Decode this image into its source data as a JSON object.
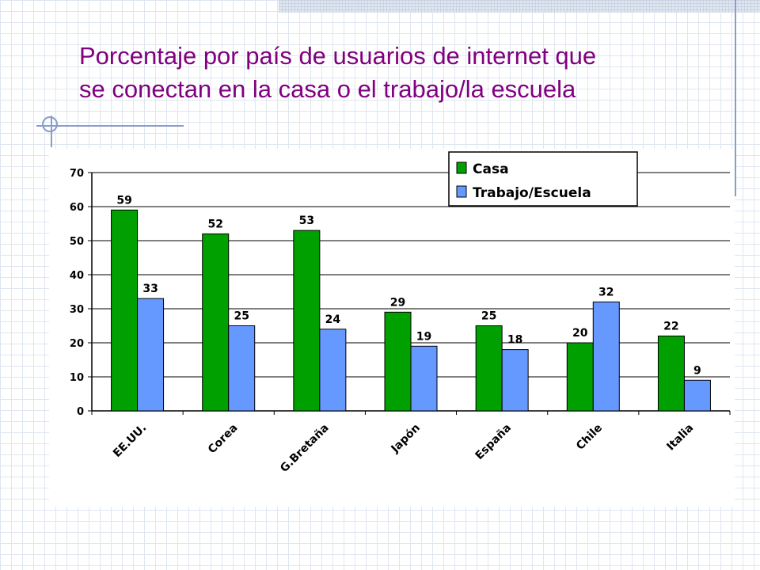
{
  "slide": {
    "title_line1": "Porcentaje por país de usuarios de internet que",
    "title_line2": "se conectan en la casa o el trabajo/la  escuela"
  },
  "colors": {
    "title": "#800080",
    "series_casa": "#00a000",
    "series_trabajo": "#6699ff",
    "grid": "#000000"
  },
  "chart_data": {
    "type": "bar",
    "categories": [
      "EE.UU.",
      "Corea",
      "G.Bretaña",
      "Japón",
      "España",
      "Chile",
      "Italia"
    ],
    "series": [
      {
        "name": "Casa",
        "values": [
          59,
          52,
          53,
          29,
          25,
          20,
          22
        ]
      },
      {
        "name": "Trabajo/Escuela",
        "values": [
          33,
          25,
          24,
          19,
          18,
          32,
          9
        ]
      }
    ],
    "ylim": [
      0,
      70
    ],
    "yticks": [
      0,
      10,
      20,
      30,
      40,
      50,
      60,
      70
    ],
    "grid": true,
    "legend_position": "top-right",
    "data_labels": true
  }
}
